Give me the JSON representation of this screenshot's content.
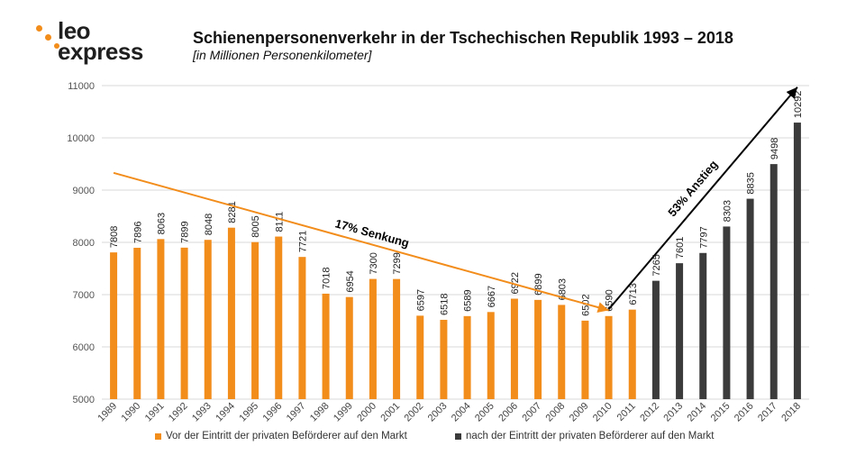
{
  "logo": {
    "line1": "leo",
    "line2": "express"
  },
  "title": "Schienenpersonenverkehr in der Tschechischen Republik 1993 – 2018",
  "subtitle": "[in Millionen Personenkilometer]",
  "colors": {
    "orange": "#f28c1b",
    "dark": "#3b3b3b",
    "arrow_orange": "#f28c1b",
    "arrow_dark": "#000000",
    "grid": "#d9d9d9"
  },
  "chart_data": {
    "type": "bar",
    "categories": [
      "1989",
      "1990",
      "1991",
      "1992",
      "1993",
      "1994",
      "1995",
      "1996",
      "1997",
      "1998",
      "1999",
      "2000",
      "2001",
      "2002",
      "2003",
      "2004",
      "2005",
      "2006",
      "2007",
      "2008",
      "2009",
      "2010",
      "2011",
      "2012",
      "2013",
      "2014",
      "2015",
      "2016",
      "2017",
      "2018"
    ],
    "series": [
      {
        "name": "Vor der Eintritt der privaten Beförderer auf den Markt",
        "color": "#f28c1b",
        "values": [
          7808,
          7896,
          8063,
          7899,
          8048,
          8281,
          8005,
          8111,
          7721,
          7018,
          6954,
          7300,
          7299,
          6597,
          6518,
          6589,
          6667,
          6922,
          6899,
          6803,
          6502,
          6590,
          6713,
          null,
          null,
          null,
          null,
          null,
          null,
          null
        ]
      },
      {
        "name": "nach der Eintritt der privaten Beförderer auf den Markt",
        "color": "#3b3b3b",
        "values": [
          null,
          null,
          null,
          null,
          null,
          null,
          null,
          null,
          null,
          null,
          null,
          null,
          null,
          null,
          null,
          null,
          null,
          null,
          null,
          null,
          null,
          null,
          null,
          7265,
          7601,
          7797,
          8303,
          8835,
          9498,
          10292
        ]
      }
    ],
    "ylim": [
      5000,
      11000
    ],
    "yticks": [
      5000,
      6000,
      7000,
      8000,
      9000,
      10000,
      11000
    ],
    "grid": true,
    "legend": "bottom",
    "annotations": [
      {
        "text": "17% Senkung",
        "color": "#f28c1b",
        "from_year": "1989",
        "from_value": 9330,
        "to_year": "2010",
        "to_value": 6700
      },
      {
        "text": "53% Anstieg",
        "color": "#000000",
        "from_year": "2010",
        "to_year": "2018",
        "from_value": 6720,
        "to_value": 10970
      }
    ]
  }
}
